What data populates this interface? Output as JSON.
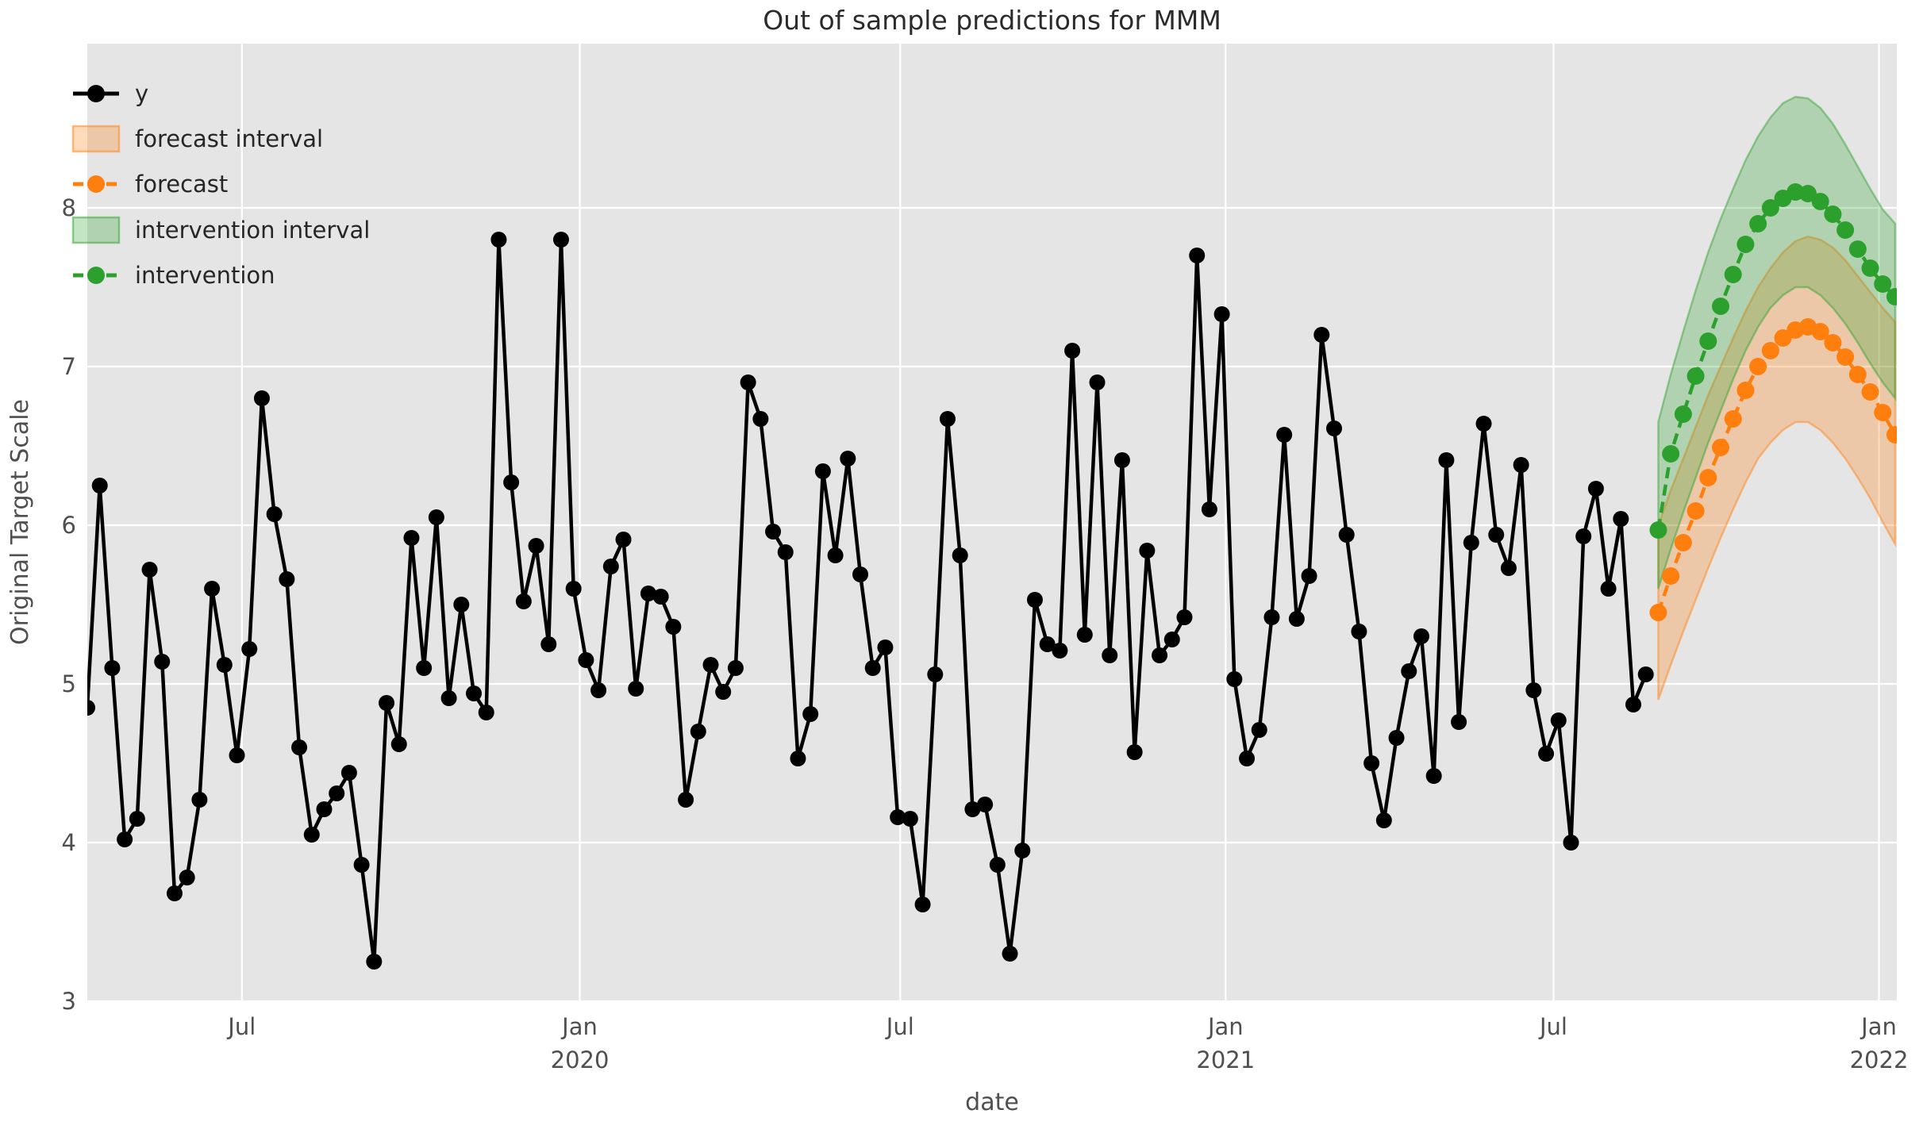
{
  "chart_data": {
    "type": "line",
    "title": "Out of sample predictions for MMM",
    "xlabel": "date",
    "ylabel": "Original Target Scale",
    "ylim": [
      3,
      9.03
    ],
    "yticks": [
      3,
      4,
      5,
      6,
      7,
      8
    ],
    "ytick_labels": [
      "3",
      "4",
      "5",
      "6",
      "7",
      "8"
    ],
    "x_ticks": [
      {
        "index": 12.4,
        "line1": "Jul",
        "line2": ""
      },
      {
        "index": 39.5,
        "line1": "Jan",
        "line2": "2020"
      },
      {
        "index": 65.2,
        "line1": "Jul",
        "line2": ""
      },
      {
        "index": 91.3,
        "line1": "Jan",
        "line2": "2021"
      },
      {
        "index": 117.6,
        "line1": "Jul",
        "line2": ""
      },
      {
        "index": 143.7,
        "line1": "Jan",
        "line2": "2022"
      }
    ],
    "grid": true,
    "legend_position": "upper-left",
    "legend": [
      {
        "label": "y",
        "type": "line",
        "color": "#000000"
      },
      {
        "label": "forecast interval",
        "type": "band",
        "color": "#ff7f0e"
      },
      {
        "label": "forecast",
        "type": "dashed",
        "color": "#ff7f0e"
      },
      {
        "label": "intervention interval",
        "type": "band",
        "color": "#2ca02c"
      },
      {
        "label": "intervention",
        "type": "dashed",
        "color": "#2ca02c"
      }
    ],
    "colors": {
      "y": "#000000",
      "forecast": "#ff7f0e",
      "intervention": "#2ca02c",
      "plot_background": "#e5e5e5",
      "grid": "#ffffff",
      "text": "#4f4f4f",
      "title_text": "#2b2b2b"
    },
    "series": [
      {
        "name": "y",
        "start_index": 0,
        "values": [
          4.85,
          6.25,
          5.1,
          4.02,
          4.15,
          5.72,
          5.14,
          3.68,
          3.78,
          4.27,
          5.6,
          5.12,
          4.55,
          5.22,
          6.8,
          6.07,
          5.66,
          4.6,
          4.05,
          4.21,
          4.31,
          4.44,
          3.86,
          3.25,
          4.88,
          4.62,
          5.92,
          5.1,
          6.05,
          4.91,
          5.5,
          4.94,
          4.82,
          7.8,
          6.27,
          5.52,
          5.87,
          5.25,
          7.8,
          5.6,
          5.15,
          4.96,
          5.74,
          5.91,
          4.97,
          5.57,
          5.55,
          5.36,
          4.27,
          4.7,
          5.12,
          4.95,
          5.1,
          6.9,
          6.67,
          5.96,
          5.83,
          4.53,
          4.81,
          6.34,
          5.81,
          6.42,
          5.69,
          5.1,
          5.23,
          4.16,
          4.15,
          3.61,
          5.06,
          6.67,
          5.81,
          4.21,
          4.24,
          3.86,
          3.3,
          3.95,
          5.53,
          5.25,
          5.21,
          7.1,
          5.31,
          6.9,
          5.18,
          6.41,
          4.57,
          5.84,
          5.18,
          5.28,
          5.42,
          7.7,
          6.1,
          7.33,
          5.03,
          4.53,
          4.71,
          5.42,
          6.57,
          5.41,
          5.68,
          7.2,
          6.61,
          5.94,
          5.33,
          4.5,
          4.14,
          4.66,
          5.08,
          5.3,
          4.42,
          6.41,
          4.76,
          5.89,
          6.64,
          5.94,
          5.73,
          6.38,
          4.96,
          4.56,
          4.77,
          4.0,
          5.93,
          6.23,
          5.6,
          6.04,
          4.87,
          5.06
        ]
      },
      {
        "name": "forecast",
        "start_index": 126,
        "values": [
          5.45,
          5.68,
          5.89,
          6.09,
          6.3,
          6.49,
          6.67,
          6.85,
          7.0,
          7.1,
          7.18,
          7.23,
          7.25,
          7.22,
          7.15,
          7.06,
          6.95,
          6.84,
          6.71,
          6.57
        ],
        "lower": [
          4.9,
          5.12,
          5.33,
          5.53,
          5.73,
          5.92,
          6.1,
          6.27,
          6.42,
          6.52,
          6.6,
          6.65,
          6.65,
          6.6,
          6.52,
          6.42,
          6.3,
          6.17,
          6.02,
          5.88
        ],
        "upper": [
          6.0,
          6.22,
          6.42,
          6.62,
          6.82,
          7.0,
          7.18,
          7.35,
          7.5,
          7.62,
          7.72,
          7.79,
          7.82,
          7.8,
          7.75,
          7.67,
          7.57,
          7.47,
          7.37,
          7.28
        ]
      },
      {
        "name": "intervention",
        "start_index": 126,
        "values": [
          5.97,
          6.45,
          6.7,
          6.94,
          7.16,
          7.38,
          7.58,
          7.77,
          7.9,
          8.0,
          8.06,
          8.1,
          8.09,
          8.04,
          7.96,
          7.86,
          7.74,
          7.62,
          7.52,
          7.44
        ],
        "lower": [
          5.6,
          5.85,
          6.08,
          6.3,
          6.52,
          6.72,
          6.92,
          7.1,
          7.25,
          7.37,
          7.45,
          7.5,
          7.5,
          7.45,
          7.37,
          7.27,
          7.15,
          7.02,
          6.9,
          6.8
        ],
        "upper": [
          6.65,
          6.95,
          7.22,
          7.48,
          7.72,
          7.93,
          8.12,
          8.3,
          8.45,
          8.57,
          8.66,
          8.7,
          8.69,
          8.63,
          8.53,
          8.4,
          8.26,
          8.12,
          7.99,
          7.9
        ]
      }
    ]
  }
}
